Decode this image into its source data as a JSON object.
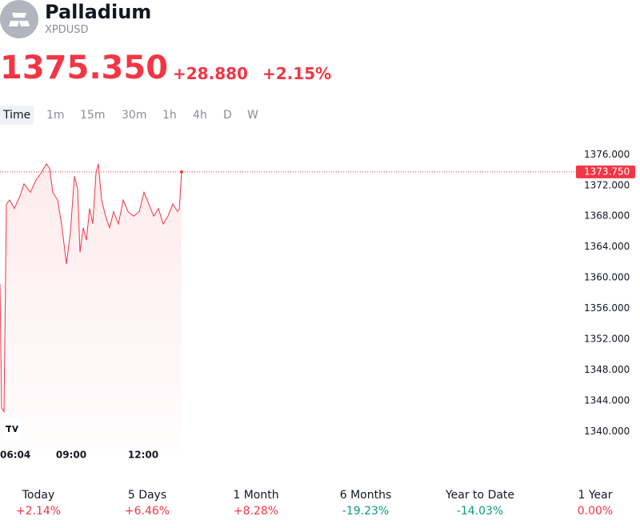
{
  "header": {
    "title": "Palladium",
    "symbol": "XPDUSD"
  },
  "quote": {
    "price": "1375.350",
    "change": "+28.880",
    "change_percent": "+2.15%"
  },
  "intervals": [
    "Time",
    "1m",
    "15m",
    "30m",
    "1h",
    "4h",
    "D",
    "W"
  ],
  "chart": {
    "type": "line",
    "color": "#f23645",
    "x": [
      362,
      366,
      372,
      378,
      386,
      398,
      412,
      422,
      438,
      452,
      466,
      478,
      486,
      494,
      506,
      516,
      522,
      528,
      538,
      548,
      556,
      562,
      570,
      578,
      586,
      594,
      602,
      608,
      616,
      626,
      636,
      646,
      658,
      670,
      682,
      696,
      710,
      722,
      734,
      746,
      758,
      770,
      782,
      794,
      806,
      810,
      816
    ],
    "values": [
      1359.2,
      1343.1,
      1342.6,
      1369.6,
      1370.1,
      1369.0,
      1370.6,
      1372.2,
      1371.1,
      1372.7,
      1373.7,
      1374.8,
      1374.2,
      1371.1,
      1370.1,
      1367.0,
      1364.4,
      1361.8,
      1365.9,
      1373.2,
      1371.6,
      1363.3,
      1366.5,
      1364.9,
      1369.0,
      1367.0,
      1373.7,
      1374.8,
      1370.1,
      1368.0,
      1366.5,
      1368.6,
      1367.0,
      1370.1,
      1368.6,
      1368.0,
      1368.6,
      1371.1,
      1369.6,
      1368.0,
      1369.0,
      1367.0,
      1368.0,
      1369.6,
      1368.6,
      1368.9,
      1373.75
    ],
    "xlim": [
      362,
      1802
    ],
    "ylim": [
      1338.4,
      1377.9
    ],
    "xticks": [
      {
        "value": 364,
        "label": "06:04"
      },
      {
        "value": 540,
        "label": "09:00"
      },
      {
        "value": 720,
        "label": "12:00"
      }
    ],
    "yticks": [
      {
        "value": 1376,
        "label": "1376.000"
      },
      {
        "value": 1372,
        "label": "1372.000"
      },
      {
        "value": 1368,
        "label": "1368.000"
      },
      {
        "value": 1364,
        "label": "1364.000"
      },
      {
        "value": 1360,
        "label": "1360.000"
      },
      {
        "value": 1356,
        "label": "1356.000"
      },
      {
        "value": 1352,
        "label": "1352.000"
      },
      {
        "value": 1348,
        "label": "1348.000"
      },
      {
        "value": 1344,
        "label": "1344.000"
      },
      {
        "value": 1340,
        "label": "1340.000"
      }
    ],
    "last": {
      "value": 1373.75,
      "label": "1373.750"
    }
  },
  "performance": [
    {
      "label": "Today",
      "value": "+2.14%",
      "color": "#f23645"
    },
    {
      "label": "5 Days",
      "value": "+6.46%",
      "color": "#f23645"
    },
    {
      "label": "1 Month",
      "value": "+8.28%",
      "color": "#f23645"
    },
    {
      "label": "6 Months",
      "value": "-19.23%",
      "color": "#089981"
    },
    {
      "label": "Year to Date",
      "value": "-14.03%",
      "color": "#089981"
    },
    {
      "label": "1 Year",
      "value": "0.00%",
      "color": "#f23645"
    }
  ]
}
